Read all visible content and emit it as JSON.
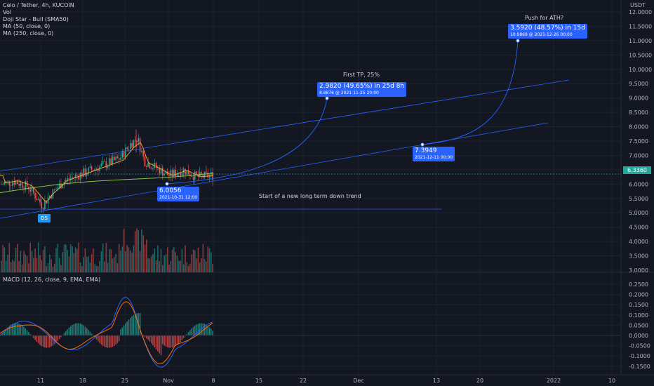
{
  "legend": {
    "symbol": "Celo / Tether, 4h, KUCOIN",
    "vol": "Vol",
    "doji": "Doji Star - Bull (SMA50)",
    "ma50": "MA (50, close, 0)",
    "ma250": "MA (250, close, 0)"
  },
  "macd_legend": "MACD (12, 26, close, 9, EMA, EMA)",
  "axis_unit": "USDT",
  "current_price": "6.3360",
  "price_ticks": [
    "12.0000",
    "11.5000",
    "11.0000",
    "10.5000",
    "10.0000",
    "9.5000",
    "9.0000",
    "8.5000",
    "8.0000",
    "7.5000",
    "7.0000",
    "6.5000",
    "6.0000",
    "5.5000",
    "5.0000",
    "4.5000",
    "4.0000",
    "3.5000",
    "3.0000"
  ],
  "macd_ticks": [
    "0.2500",
    "0.2000",
    "0.1500",
    "0.1000",
    "0.0500",
    "0.0000",
    "-0.0500",
    "-0.1000",
    "-0.1500"
  ],
  "time_ticks": [
    "11",
    "18",
    "25",
    "Nov",
    "8",
    "15",
    "22",
    "Dec",
    "13",
    "20",
    "2022",
    "10"
  ],
  "annotations": {
    "first_tp": "First TP, 25%",
    "tp_box_line1": "2.9820 (49.65%) in 25d 8h",
    "tp_box_line2": "8.9876 @ 2021-11-25  20:00",
    "ath": "Push for ATH?",
    "ath_box_line1": "3.5920 (48.57%) in 15d",
    "ath_box_line2": "10.9869 @ 2021-12-26  00:00",
    "mid_box_line1": "7.3949",
    "mid_box_line2": "2021-12-11 00:00",
    "low_box_line1": "6.0056",
    "low_box_line2": "2021-10-31 12:00",
    "downtrend": "Start of a new long term down trend",
    "ds_label": "DS"
  },
  "colors": {
    "background": "#131722",
    "up": "#26a69a",
    "down": "#ef5350",
    "drawing": "#2962ff",
    "ma50": "#f0a030",
    "ma250": "#8bc34a"
  }
}
